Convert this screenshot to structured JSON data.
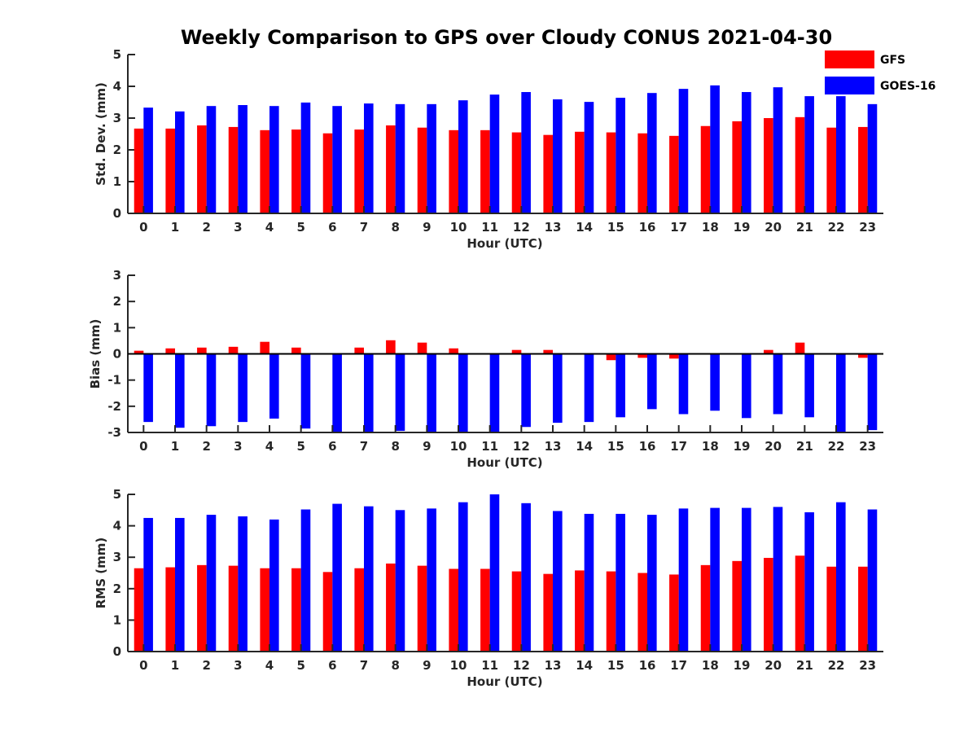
{
  "title": "Weekly Comparison to GPS over Cloudy CONUS 2021-04-30",
  "legend": {
    "placement": "top-right",
    "entries": [
      {
        "label": "GFS",
        "color": "#ff0000"
      },
      {
        "label": "GOES-16",
        "color": "#0000ff"
      }
    ]
  },
  "chart_data": [
    {
      "type": "bar",
      "xlabel": "Hour (UTC)",
      "ylabel": "Std. Dev. (mm)",
      "ylim": [
        0,
        5
      ],
      "yticks": [
        "0",
        "1",
        "2",
        "3",
        "4",
        "5"
      ],
      "categories": [
        "0",
        "1",
        "2",
        "3",
        "4",
        "5",
        "6",
        "7",
        "8",
        "9",
        "10",
        "11",
        "12",
        "13",
        "14",
        "15",
        "16",
        "17",
        "18",
        "19",
        "20",
        "21",
        "22",
        "23"
      ],
      "series": [
        {
          "name": "GFS",
          "color": "#ff0000",
          "values": [
            2.67,
            2.67,
            2.77,
            2.72,
            2.62,
            2.64,
            2.52,
            2.64,
            2.77,
            2.7,
            2.62,
            2.62,
            2.55,
            2.47,
            2.57,
            2.55,
            2.52,
            2.44,
            2.75,
            2.9,
            3.0,
            3.03,
            2.7,
            2.72
          ]
        },
        {
          "name": "GOES-16",
          "color": "#0000ff",
          "values": [
            3.33,
            3.21,
            3.38,
            3.41,
            3.38,
            3.49,
            3.38,
            3.46,
            3.44,
            3.44,
            3.56,
            3.74,
            3.82,
            3.59,
            3.51,
            3.64,
            3.79,
            3.92,
            4.03,
            3.82,
            3.97,
            3.69,
            3.69,
            3.44
          ]
        }
      ]
    },
    {
      "type": "bar",
      "xlabel": "Hour (UTC)",
      "ylabel": "Bias (mm)",
      "ylim": [
        -3,
        3
      ],
      "yticks": [
        "-3",
        "-2",
        "-1",
        "0",
        "1",
        "2",
        "3"
      ],
      "categories": [
        "0",
        "1",
        "2",
        "3",
        "4",
        "5",
        "6",
        "7",
        "8",
        "9",
        "10",
        "11",
        "12",
        "13",
        "14",
        "15",
        "16",
        "17",
        "18",
        "19",
        "20",
        "21",
        "22",
        "23"
      ],
      "series": [
        {
          "name": "GFS",
          "color": "#ff0000",
          "values": [
            0.12,
            0.21,
            0.24,
            0.27,
            0.46,
            0.24,
            -0.03,
            0.24,
            0.52,
            0.43,
            0.21,
            0.0,
            0.15,
            0.15,
            -0.03,
            -0.24,
            -0.15,
            -0.18,
            0.0,
            0.0,
            0.15,
            0.43,
            0.03,
            -0.15
          ]
        },
        {
          "name": "GOES-16",
          "color": "#0000ff",
          "values": [
            -2.6,
            -2.82,
            -2.76,
            -2.6,
            -2.47,
            -2.85,
            -3.0,
            -3.0,
            -2.94,
            -2.97,
            -3.0,
            -3.0,
            -2.79,
            -2.63,
            -2.6,
            -2.42,
            -2.11,
            -2.3,
            -2.17,
            -2.45,
            -2.3,
            -2.42,
            -2.97,
            -2.91
          ]
        }
      ]
    },
    {
      "type": "bar",
      "xlabel": "Hour (UTC)",
      "ylabel": "RMS (mm)",
      "ylim": [
        0,
        5
      ],
      "yticks": [
        "0",
        "1",
        "2",
        "3",
        "4",
        "5"
      ],
      "categories": [
        "0",
        "1",
        "2",
        "3",
        "4",
        "5",
        "6",
        "7",
        "8",
        "9",
        "10",
        "11",
        "12",
        "13",
        "14",
        "15",
        "16",
        "17",
        "18",
        "19",
        "20",
        "21",
        "22",
        "23"
      ],
      "series": [
        {
          "name": "GFS",
          "color": "#ff0000",
          "values": [
            2.65,
            2.68,
            2.75,
            2.73,
            2.65,
            2.65,
            2.53,
            2.65,
            2.8,
            2.73,
            2.63,
            2.63,
            2.55,
            2.47,
            2.58,
            2.55,
            2.5,
            2.45,
            2.75,
            2.88,
            2.98,
            3.05,
            2.7,
            2.7
          ]
        },
        {
          "name": "GOES-16",
          "color": "#0000ff",
          "values": [
            4.25,
            4.25,
            4.35,
            4.3,
            4.2,
            4.52,
            4.7,
            4.62,
            4.5,
            4.55,
            4.75,
            5.0,
            4.72,
            4.47,
            4.38,
            4.38,
            4.35,
            4.55,
            4.57,
            4.57,
            4.6,
            4.43,
            4.75,
            4.52
          ]
        }
      ]
    }
  ]
}
